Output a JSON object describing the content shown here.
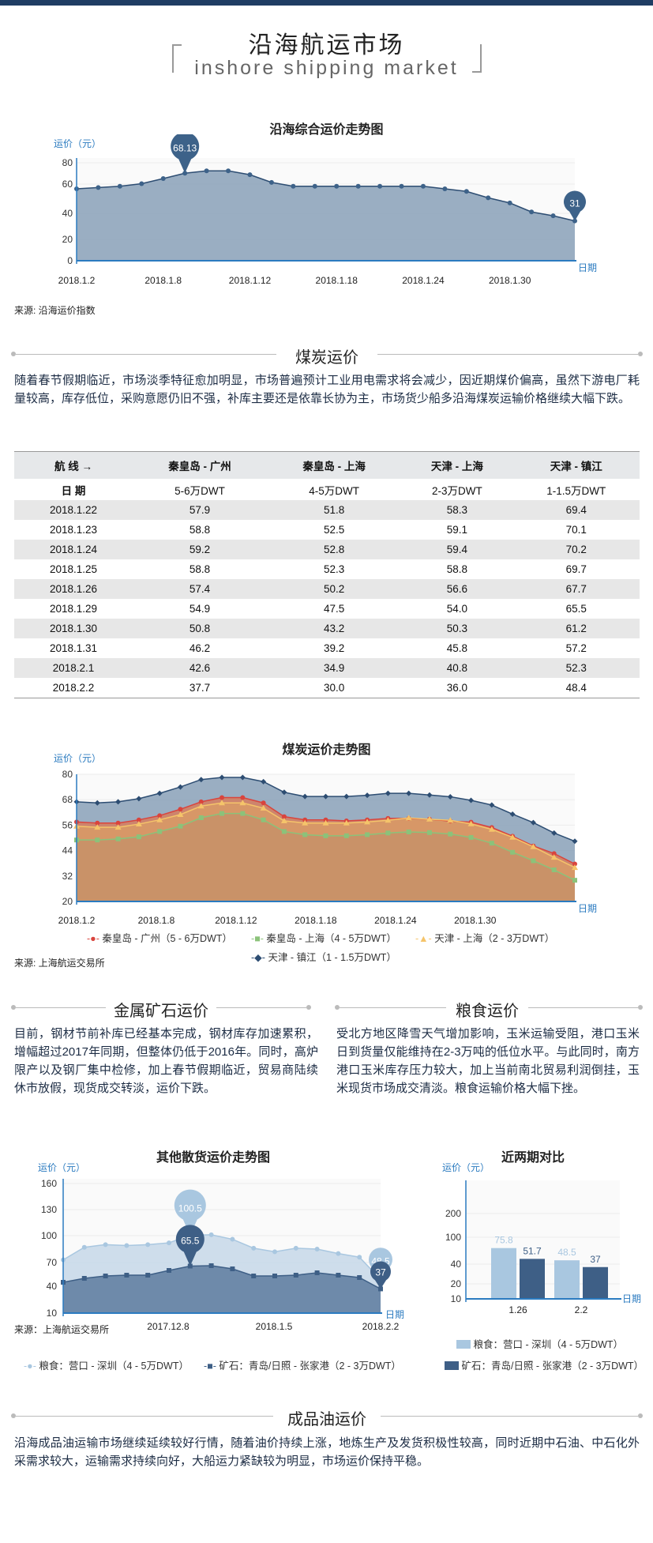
{
  "header": {
    "title_cn": "沿海航运市场",
    "title_en": "inshore shipping market"
  },
  "sections": {
    "coal": "煤炭运价",
    "metal": "金属矿石运价",
    "grain": "粮食运价",
    "oil": "成品油运价"
  },
  "paragraphs": {
    "coal": "随着春节假期临近，市场淡季特征愈加明显，市场普遍预计工业用电需求将会减少，因近期煤价偏高，虽然下游电厂耗量较高，库存低位，采购意愿仍旧不强，补库主要还是依靠长协为主，市场货少船多沿海煤炭运输价格继续大幅下跌。",
    "metal": "目前，钢材节前补库已经基本完成，钢材库存加速累积，增幅超过2017年同期，但整体仍低于2016年。同时，高炉限产以及钢厂集中检修，加上春节假期临近，贸易商陆续休市放假，现货成交转淡，运价下跌。",
    "grain": "受北方地区降雪天气增加影响，玉米运输受阻，港口玉米日到货量仅能维持在2-3万吨的低位水平。与此同时，南方港口玉米库存压力较大，加上当前南北贸易利润倒挂，玉米现货市场成交清淡。粮食运输价格大幅下挫。",
    "oil": "沿海成品油运输市场继续延续较好行情，随着油价持续上涨，地炼生产及发货积极性较高，同时近期中石油、中石化外采需求较大，运输需求持续向好，大船运力紧缺较为明显，市场运价保持平稳。"
  },
  "sources": {
    "chart1": "来源: 沿海运价指数",
    "chart2": "来源: 上海航运交易所",
    "chart3": "来源：上海航运交易所"
  },
  "table": {
    "route_label": "航 线 →",
    "date_label": "日 期",
    "columns": [
      {
        "route": "秦皇岛 - 广州",
        "size": "5-6万DWT"
      },
      {
        "route": "秦皇岛 - 上海",
        "size": "4-5万DWT"
      },
      {
        "route": "天津 - 上海",
        "size": "2-3万DWT"
      },
      {
        "route": "天津 - 镇江",
        "size": "1-1.5万DWT"
      }
    ],
    "rows": [
      [
        "2018.1.22",
        "57.9",
        "51.8",
        "58.3",
        "69.4"
      ],
      [
        "2018.1.23",
        "58.8",
        "52.5",
        "59.1",
        "70.1"
      ],
      [
        "2018.1.24",
        "59.2",
        "52.8",
        "59.4",
        "70.2"
      ],
      [
        "2018.1.25",
        "58.8",
        "52.3",
        "58.8",
        "69.7"
      ],
      [
        "2018.1.26",
        "57.4",
        "50.2",
        "56.6",
        "67.7"
      ],
      [
        "2018.1.29",
        "54.9",
        "47.5",
        "54.0",
        "65.5"
      ],
      [
        "2018.1.30",
        "50.8",
        "43.2",
        "50.3",
        "61.2"
      ],
      [
        "2018.1.31",
        "46.2",
        "39.2",
        "45.8",
        "57.2"
      ],
      [
        "2018.2.1",
        "42.6",
        "34.9",
        "40.8",
        "52.3"
      ],
      [
        "2018.2.2",
        "37.7",
        "30.0",
        "36.0",
        "48.4"
      ]
    ]
  },
  "chart_data": [
    {
      "id": "composite",
      "type": "area",
      "title": "沿海综合运价走势图",
      "ylabel": "运价（元）",
      "xlabel": "日期",
      "yticks": [
        "0",
        "20",
        "40",
        "60",
        "80"
      ],
      "xtick_labels": [
        "2018.1.2",
        "2018.1.8",
        "2018.1.12",
        "2018.1.18",
        "2018.1.24",
        "2018.1.30"
      ],
      "xtick_index": [
        0,
        4,
        8,
        12,
        16,
        20
      ],
      "series": [
        {
          "values": [
            56,
            57,
            58,
            60,
            64,
            68.13,
            70,
            70,
            67,
            61,
            58,
            58,
            58,
            58,
            58,
            58,
            58,
            56,
            54,
            49,
            45,
            38,
            35,
            31
          ]
        }
      ],
      "annotations": {
        "max": "68.13",
        "last": "31"
      },
      "colors": {
        "fill": "#8fa5bb",
        "line": "#2d4d72",
        "marker": "#3d6289"
      }
    },
    {
      "id": "coal",
      "type": "area",
      "title": "煤炭运价走势图",
      "ylabel": "运价（元）",
      "xlabel": "日期",
      "yticks": [
        "20",
        "32",
        "44",
        "56",
        "68",
        "80"
      ],
      "xtick_labels": [
        "2018.1.2",
        "2018.1.8",
        "2018.1.12",
        "2018.1.18",
        "2018.1.24",
        "2018.1.30"
      ],
      "xtick_index": [
        0,
        4,
        8,
        12,
        16,
        20
      ],
      "series": [
        {
          "name": "天津 - 镇江（1 - 1.5万DWT）",
          "color": "#2d4d72",
          "values": [
            67,
            66.5,
            67,
            68.5,
            71,
            74,
            77.5,
            78.5,
            78.5,
            76.5,
            71.5,
            69.5,
            69.5,
            69.5,
            70.1,
            71,
            71,
            70.2,
            69.4,
            67.7,
            65.5,
            61.2,
            57.2,
            52.3,
            48.4
          ]
        },
        {
          "name": "秦皇岛 - 广州（5 - 6万DWT）",
          "color": "#d9443d",
          "values": [
            57.5,
            57,
            57,
            58.5,
            60.5,
            63.5,
            67,
            69,
            69,
            66.5,
            60,
            58.5,
            58.5,
            58,
            58.5,
            59.2,
            59.2,
            58.8,
            57.9,
            57.4,
            54.9,
            50.8,
            46.2,
            42.6,
            37.7
          ]
        },
        {
          "name": "天津 - 上海（2 - 3万DWT）",
          "color": "#f5c46a",
          "values": [
            55.5,
            55,
            55,
            56.5,
            58.5,
            61,
            65,
            66.5,
            66.5,
            64,
            58,
            57,
            57,
            57,
            57.5,
            58.3,
            59.4,
            58.8,
            58.3,
            56.6,
            54,
            50.3,
            45.8,
            40.8,
            36
          ]
        },
        {
          "name": "秦皇岛 - 上海（4 - 5万DWT）",
          "color": "#8bc27a",
          "values": [
            49,
            49,
            49.5,
            50.5,
            53,
            55.5,
            59.5,
            61.5,
            61.5,
            58.5,
            53,
            51.5,
            51,
            51,
            51.5,
            52.3,
            52.8,
            52.5,
            51.8,
            50.2,
            47.5,
            43.2,
            39.2,
            34.9,
            30
          ]
        }
      ],
      "colors": {
        "fill": "#8fa5bb"
      }
    },
    {
      "id": "bulk",
      "type": "area",
      "title": "其他散货运价走势图",
      "ylabel": "运价（元）",
      "xlabel": "日期",
      "yticks": [
        "10",
        "40",
        "70",
        "100",
        "130",
        "160"
      ],
      "xtick_labels": [
        "2017.12.8",
        "2018.1.5",
        "2018.2.2"
      ],
      "xtick_index": [
        5,
        10,
        15
      ],
      "series": [
        {
          "name": "粮食：营口 - 深圳（4 - 5万DWT）",
          "color": "#a9c7e0",
          "values": [
            73,
            87,
            90,
            89,
            90,
            92,
            100.5,
            101,
            96,
            86,
            82,
            86,
            85,
            80,
            76,
            48.5
          ]
        },
        {
          "name": "矿石：青岛/日照 - 张家港（2 - 3万DWT）",
          "color": "#3e5f86",
          "values": [
            45,
            50,
            53,
            54,
            54,
            60,
            65.5,
            66,
            62,
            53,
            53,
            54,
            57,
            54,
            51,
            37
          ]
        }
      ],
      "annotations": {
        "grain_max": "100.5",
        "ore_max": "65.5",
        "grain_last": "48.5",
        "ore_last": "37"
      }
    },
    {
      "id": "compare",
      "type": "bar",
      "title": "近两期对比",
      "ylabel": "运价（元）",
      "xlabel": "日期",
      "yticks": [
        "10",
        "20",
        "40",
        "100",
        "200"
      ],
      "categories": [
        "1.26",
        "2.2"
      ],
      "series": [
        {
          "name": "粮食：营口 - 深圳（4 - 5万DWT）",
          "color": "#a9c7e0",
          "values": [
            75.8,
            48.5
          ]
        },
        {
          "name": "矿石：青岛/日照 - 张家港（2 - 3万DWT）",
          "color": "#3e5f86",
          "values": [
            51.7,
            37
          ]
        }
      ],
      "value_labels": [
        "75.8",
        "51.7",
        "48.5",
        "37"
      ]
    }
  ]
}
